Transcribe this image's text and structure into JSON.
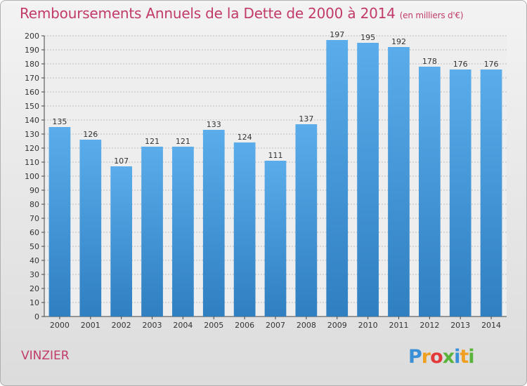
{
  "header": {
    "title": "Remboursements Annuels de la Dette de 2000 à 2014",
    "unit": "(en milliers d'€)"
  },
  "footer": {
    "commune": "VINZIER",
    "logo_text": "Proxiti"
  },
  "colors": {
    "title": "#c23a6a",
    "bar_top": "#5aacea",
    "bar_bottom": "#2f7fc1",
    "grid": "#bdbdbd"
  },
  "chart_data": {
    "type": "bar",
    "title": "Remboursements Annuels de la Dette de 2000 à 2014",
    "subtitle": "(en milliers d'€)",
    "xlabel": "",
    "ylabel": "",
    "categories": [
      "2000",
      "2001",
      "2002",
      "2003",
      "2004",
      "2005",
      "2006",
      "2007",
      "2008",
      "2009",
      "2010",
      "2011",
      "2012",
      "2013",
      "2014"
    ],
    "values": [
      135,
      126,
      107,
      121,
      121,
      133,
      124,
      111,
      137,
      197,
      195,
      192,
      178,
      176,
      176
    ],
    "ylim": [
      0,
      200
    ],
    "yticks": [
      0,
      10,
      20,
      30,
      40,
      50,
      60,
      70,
      80,
      90,
      100,
      110,
      120,
      130,
      140,
      150,
      160,
      170,
      180,
      190,
      200
    ],
    "grid": true,
    "data_labels": true
  }
}
